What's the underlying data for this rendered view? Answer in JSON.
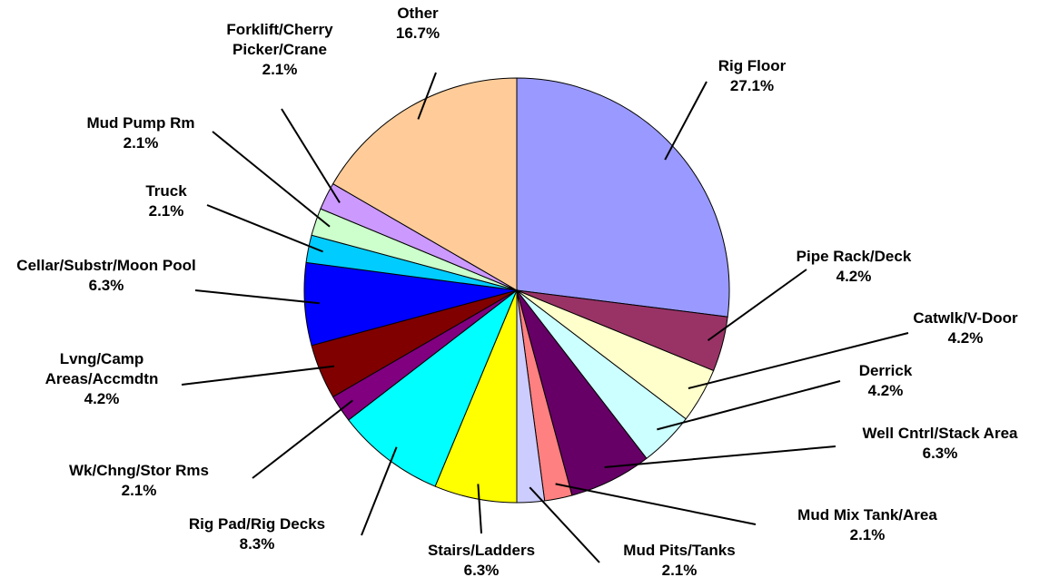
{
  "chart_data": {
    "type": "pie",
    "categories": [
      "Rig Floor",
      "Pipe Rack/Deck",
      "Catwlk/V-Door",
      "Derrick",
      "Well Cntrl/Stack Area",
      "Mud Mix Tank/Area",
      "Mud Pits/Tanks",
      "Stairs/Ladders",
      "Rig Pad/Rig Decks",
      "Wk/Chng/Stor Rms",
      "Lvng/Camp Areas/Accmdtn",
      "Cellar/Substr/Moon Pool",
      "Truck",
      "Mud Pump Rm",
      "Forklift/Cherry Picker/Crane",
      "Other"
    ],
    "values": [
      27.1,
      4.2,
      4.2,
      4.2,
      6.3,
      2.1,
      2.1,
      6.3,
      8.3,
      2.1,
      4.2,
      6.3,
      2.1,
      2.1,
      2.1,
      16.7
    ],
    "value_labels": [
      "27.1%",
      "4.2%",
      "4.2%",
      "4.2%",
      "6.3%",
      "2.1%",
      "2.1%",
      "6.3%",
      "8.3%",
      "2.1%",
      "4.2%",
      "6.3%",
      "2.1%",
      "2.1%",
      "2.1%",
      "16.7%"
    ],
    "colors": [
      "#9999ff",
      "#993366",
      "#ffffcc",
      "#ccffff",
      "#660066",
      "#ff8080",
      "#ccccff",
      "#ffff00",
      "#00ffff",
      "#800080",
      "#800000",
      "#0000ff",
      "#00ccff",
      "#ccffcc",
      "#cc99ff",
      "#ffcc99"
    ]
  }
}
